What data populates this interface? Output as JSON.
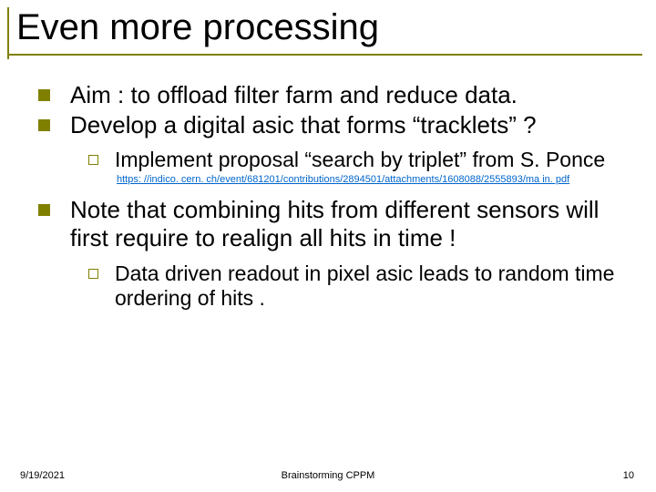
{
  "title": "Even more processing",
  "bullets": {
    "b1": "Aim : to offload filter farm and reduce data.",
    "b2": "Develop a digital asic that forms “tracklets” ?",
    "b2_sub1": "Implement proposal “search by triplet” from S. Ponce",
    "b2_link": "https: //indico. cern. ch/event/681201/contributions/2894501/attachments/1608088/2555893/ma in. pdf",
    "b3": "Note that combining hits from different sensors will first require to realign all hits in time !",
    "b3_sub1": "Data driven readout in pixel asic leads to random time ordering of hits ."
  },
  "footer": {
    "date": "9/19/2021",
    "center": "Brainstorming CPPM",
    "pagenum": "10"
  },
  "colors": {
    "accent": "#808000",
    "text": "#000000",
    "link": "#0066cc",
    "bg": "#ffffff"
  }
}
